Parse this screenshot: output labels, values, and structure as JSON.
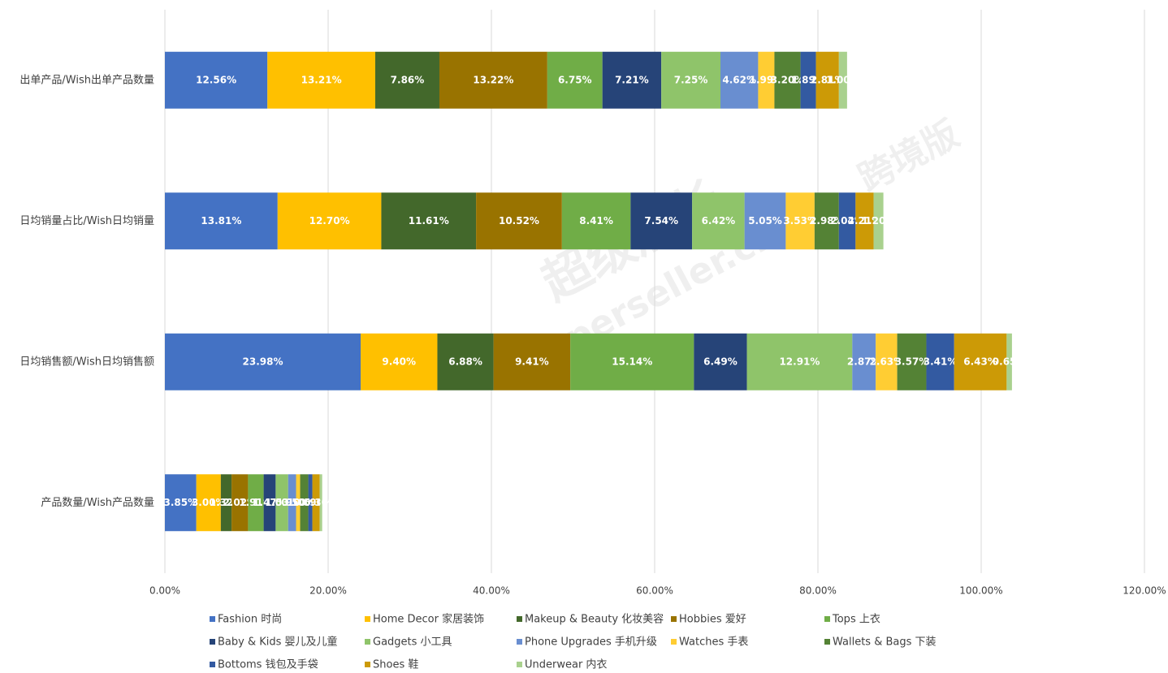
{
  "chart_data": {
    "type": "stacked-bar-horizontal",
    "categories": [
      "出单产品/Wish出单产品数量",
      "日均销量占比/Wish日均销量",
      "日均销售额/Wish日均销售额",
      "产品数量/Wish产品数量"
    ],
    "xlim": [
      0,
      120
    ],
    "xticks": [
      {
        "value": 0,
        "label": "0.00%"
      },
      {
        "value": 20,
        "label": "20.00%"
      },
      {
        "value": 40,
        "label": "40.00%"
      },
      {
        "value": 60,
        "label": "60.00%"
      },
      {
        "value": 80,
        "label": "80.00%"
      },
      {
        "value": 100,
        "label": "100.00%"
      },
      {
        "value": 120,
        "label": "120.00%"
      }
    ],
    "grid": true,
    "legend": "bottom",
    "series": [
      {
        "name": "Fashion 时尚",
        "color": "#4472c4",
        "values": [
          12.56,
          13.81,
          23.98,
          3.85
        ],
        "value_labels": [
          "12.56%",
          "13.81%",
          "23.98%",
          "3.85%"
        ]
      },
      {
        "name": "Home Decor 家居装饰",
        "color": "#ffc000",
        "values": [
          13.21,
          12.7,
          9.4,
          3.0
        ],
        "value_labels": [
          "13.21%",
          "12.70%",
          "9.40%",
          "3.00%"
        ]
      },
      {
        "name": "Makeup & Beauty 化妆美容",
        "color": "#43682b",
        "values": [
          7.86,
          11.61,
          6.88,
          1.32
        ],
        "value_labels": [
          "7.86%",
          "11.61%",
          "6.88%",
          "1.32%"
        ]
      },
      {
        "name": "Hobbies 爱好",
        "color": "#997300",
        "values": [
          13.22,
          10.52,
          9.41,
          2.02
        ],
        "value_labels": [
          "13.22%",
          "10.52%",
          "9.41%",
          "2.02%"
        ]
      },
      {
        "name": "Tops 上衣",
        "color": "#70ad47",
        "values": [
          6.75,
          8.41,
          15.14,
          1.91
        ],
        "value_labels": [
          "6.75%",
          "8.41%",
          "15.14%",
          "1.91%"
        ]
      },
      {
        "name": "Baby & Kids 婴儿及儿童",
        "color": "#264478",
        "values": [
          7.21,
          7.54,
          6.49,
          1.47
        ],
        "value_labels": [
          "7.21%",
          "7.54%",
          "6.49%",
          "1.47%"
        ]
      },
      {
        "name": "Gadgets 小工具",
        "color": "#8fc46a",
        "values": [
          7.25,
          6.42,
          12.91,
          1.53
        ],
        "value_labels": [
          "7.25%",
          "6.42%",
          "12.91%",
          "1.53%"
        ]
      },
      {
        "name": "Phone Upgrades 手机升级",
        "color": "#698ed0",
        "values": [
          4.62,
          5.05,
          2.87,
          0.97
        ],
        "value_labels": [
          "4.62%",
          "5.05%",
          "2.87%",
          "0.97%"
        ]
      },
      {
        "name": "Watches 手表",
        "color": "#ffcd33",
        "values": [
          1.99,
          3.53,
          2.63,
          0.5
        ],
        "value_labels": [
          "1.99%",
          "3.53%",
          "2.63%",
          "0.50%"
        ]
      },
      {
        "name": "Wallets & Bags 下装",
        "color": "#548235",
        "values": [
          3.2,
          2.98,
          3.57,
          1.0
        ],
        "value_labels": [
          "3.20%",
          "2.98%",
          "3.57%",
          "1.00%"
        ]
      },
      {
        "name": "Bottoms 钱包及手袋",
        "color": "#335aa1",
        "values": [
          1.89,
          2.04,
          3.41,
          0.5
        ],
        "value_labels": [
          "1.89%",
          "2.04%",
          "3.41%",
          "0.50%"
        ]
      },
      {
        "name": "Shoes 鞋",
        "color": "#cc9a06",
        "values": [
          2.81,
          2.21,
          6.43,
          0.9
        ],
        "value_labels": [
          "2.81%",
          "2.21%",
          "6.43%",
          "0.90%"
        ]
      },
      {
        "name": "Underwear 内衣",
        "color": "#a9d18e",
        "values": [
          1.0,
          1.2,
          0.65,
          0.3
        ],
        "value_labels": [
          "1.00%",
          "1.20%",
          "0.65%",
          "0.30%"
        ]
      }
    ]
  },
  "watermark": [
    "超级店长",
    "Superseller.cn",
    "跨境版"
  ]
}
